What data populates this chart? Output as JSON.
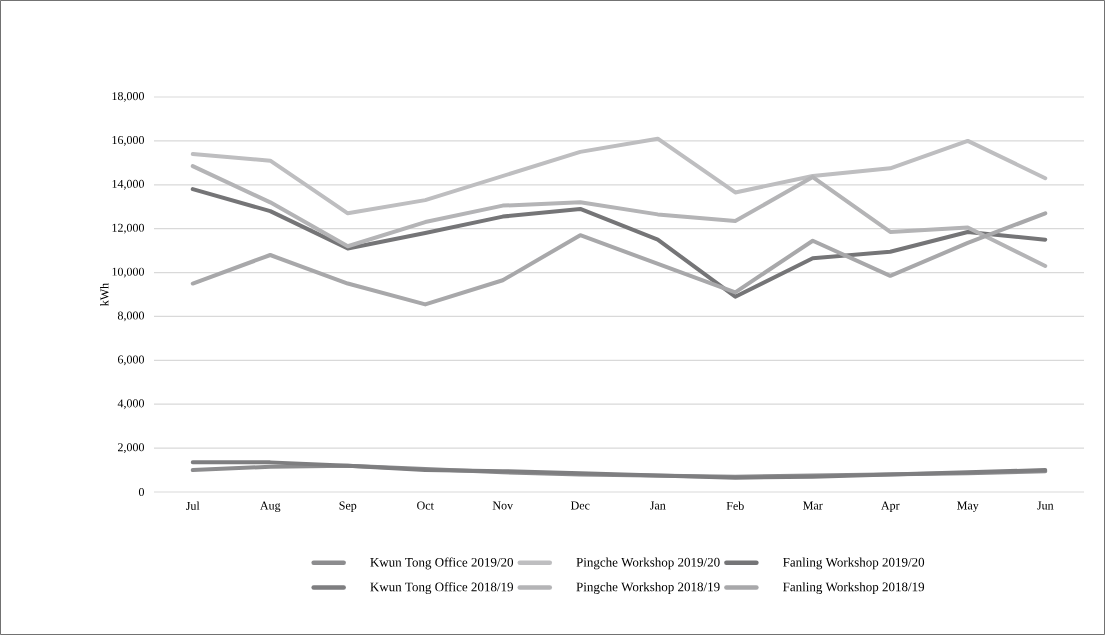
{
  "chart_data": {
    "type": "line",
    "ylabel": "kWh",
    "categories": [
      "Jul",
      "Aug",
      "Sep",
      "Oct",
      "Nov",
      "Dec",
      "Jan",
      "Feb",
      "Mar",
      "Apr",
      "May",
      "Jun"
    ],
    "ylim": [
      0,
      18000
    ],
    "yticks": [
      {
        "value": 0,
        "label": "0"
      },
      {
        "value": 2000,
        "label": "2,000"
      },
      {
        "value": 4000,
        "label": "4,000"
      },
      {
        "value": 6000,
        "label": "6,000"
      },
      {
        "value": 8000,
        "label": "8,000"
      },
      {
        "value": 10000,
        "label": "10,000"
      },
      {
        "value": 12000,
        "label": "12,000"
      },
      {
        "value": 14000,
        "label": "14,000"
      },
      {
        "value": 16000,
        "label": "16,000"
      },
      {
        "value": 18000,
        "label": "18,000"
      }
    ],
    "grid": "y",
    "legend": "bottom",
    "marker": "none",
    "line_style": "solid",
    "series": [
      {
        "name": "Kwun Tong Office 2019/20",
        "color": "#8c8c8e",
        "values": [
          1000,
          1150,
          1200,
          1050,
          900,
          800,
          750,
          700,
          750,
          800,
          850,
          950
        ]
      },
      {
        "name": "Pingche Workshop 2019/20",
        "color": "#bebec0",
        "values": [
          15400,
          15100,
          12700,
          13300,
          14400,
          15500,
          16100,
          13650,
          14400,
          14750,
          16000,
          14300
        ]
      },
      {
        "name": "Fanling Workshop 2019/20",
        "color": "#757577",
        "values": [
          13800,
          12800,
          11100,
          11800,
          12550,
          12900,
          11500,
          8900,
          10650,
          10950,
          11850,
          11500
        ]
      },
      {
        "name": "Kwun Tong Office 2018/19",
        "color": "#7e7e80",
        "values": [
          1350,
          1350,
          1200,
          1000,
          950,
          850,
          750,
          650,
          700,
          800,
          900,
          1000
        ]
      },
      {
        "name": "Pingche Workshop 2018/19",
        "color": "#b4b4b6",
        "values": [
          14850,
          13200,
          11200,
          12300,
          13050,
          13200,
          12650,
          12350,
          14350,
          11850,
          12050,
          10300
        ]
      },
      {
        "name": "Fanling Workshop 2018/19",
        "color": "#a8a8aa",
        "values": [
          9500,
          10800,
          9500,
          8550,
          9650,
          11700,
          10400,
          9100,
          11450,
          9850,
          11350,
          12700
        ]
      }
    ]
  }
}
